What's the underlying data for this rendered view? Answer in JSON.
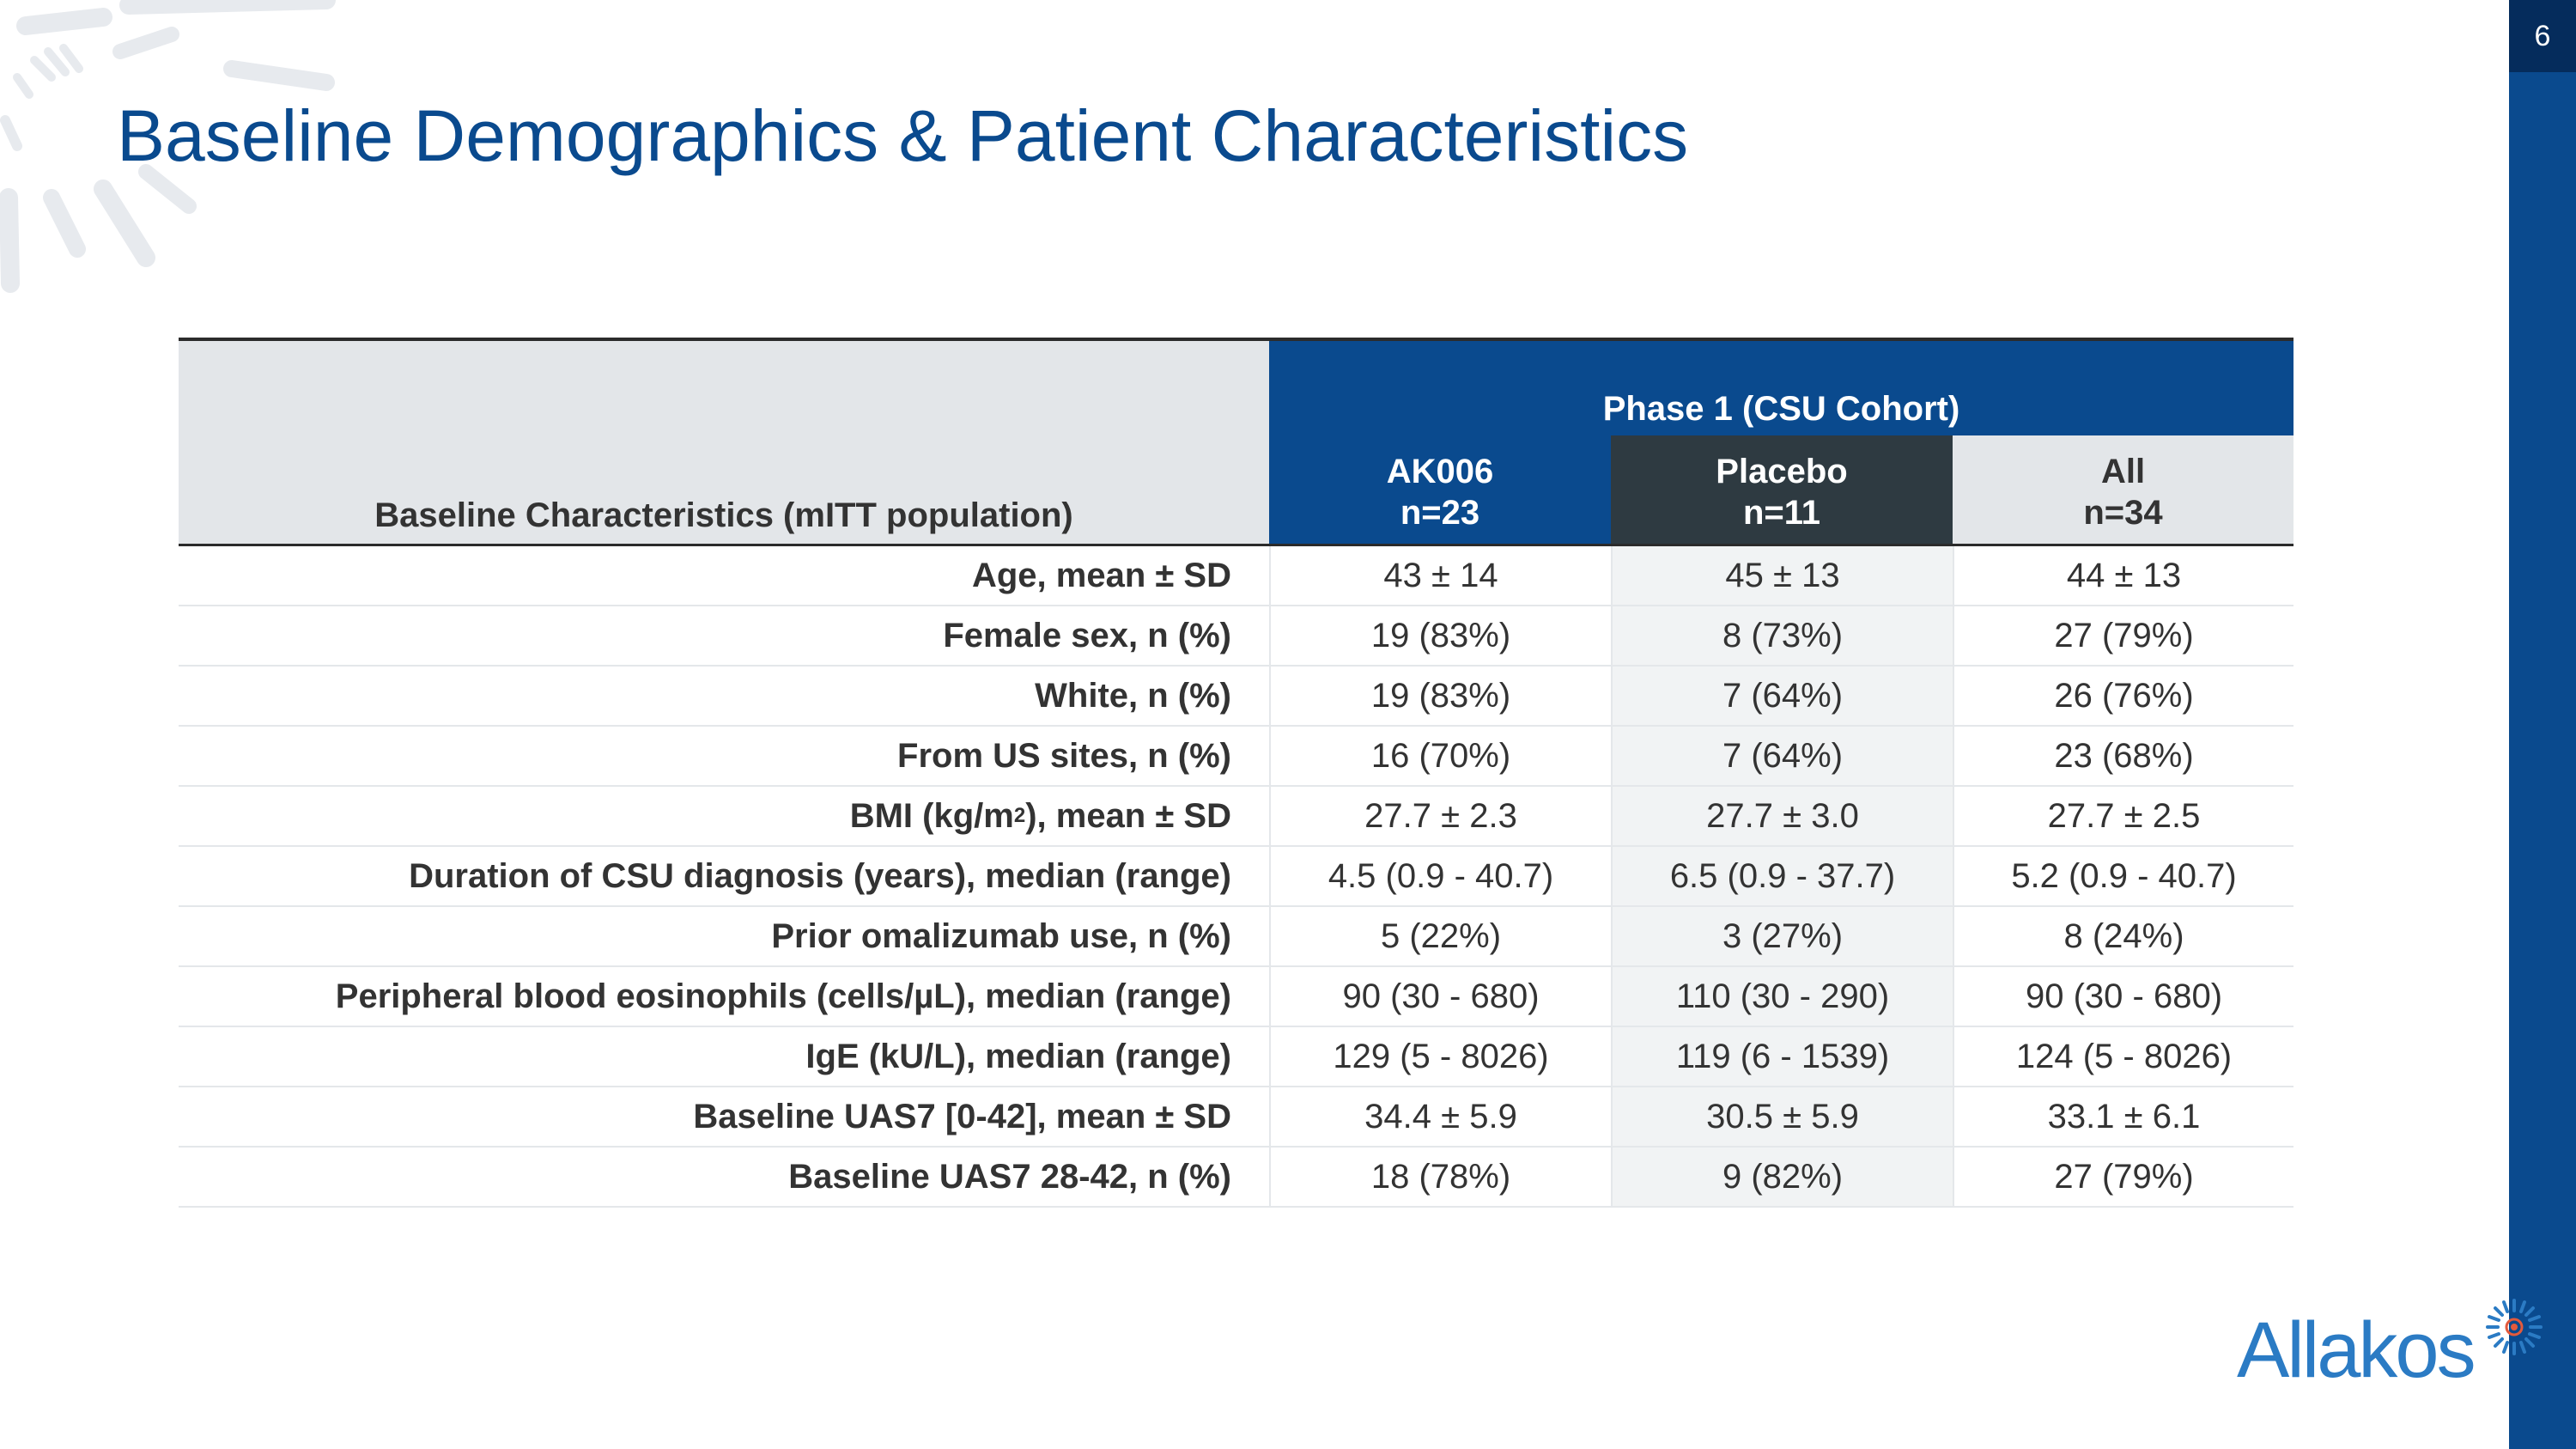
{
  "page": {
    "number": "6"
  },
  "title": "Baseline Demographics & Patient Characteristics",
  "table": {
    "row_header": "Baseline Characteristics (mITT population)",
    "group_header": "Phase 1 (CSU Cohort)",
    "columns": [
      {
        "name": "AK006",
        "n": "n=23"
      },
      {
        "name": "Placebo",
        "n": "n=11"
      },
      {
        "name": "All",
        "n": "n=34"
      }
    ],
    "rows": [
      {
        "label": "Age, mean ± SD",
        "values": [
          "43 ± 14",
          "45 ± 13",
          "44 ± 13"
        ]
      },
      {
        "label": "Female sex, n (%)",
        "values": [
          "19 (83%)",
          "8 (73%)",
          "27 (79%)"
        ]
      },
      {
        "label": "White, n (%)",
        "values": [
          "19 (83%)",
          "7 (64%)",
          "26 (76%)"
        ]
      },
      {
        "label": "From US sites, n (%)",
        "values": [
          "16 (70%)",
          "7 (64%)",
          "23 (68%)"
        ]
      },
      {
        "label_pre": "BMI (kg/m",
        "label_sup": "2",
        "label_post": "), mean ± SD",
        "values": [
          "27.7 ± 2.3",
          "27.7 ± 3.0",
          "27.7 ± 2.5"
        ]
      },
      {
        "label": "Duration of CSU diagnosis (years), median (range)",
        "values": [
          "4.5 (0.9 - 40.7)",
          "6.5 (0.9 - 37.7)",
          "5.2 (0.9 - 40.7)"
        ]
      },
      {
        "label": "Prior omalizumab use, n (%)",
        "values": [
          "5 (22%)",
          "3 (27%)",
          "8 (24%)"
        ]
      },
      {
        "label": "Peripheral blood eosinophils (cells/µL), median (range)",
        "values": [
          "90 (30 - 680)",
          "110 (30 - 290)",
          "90 (30 - 680)"
        ]
      },
      {
        "label": "IgE (kU/L), median (range)",
        "values": [
          "129 (5 - 8026)",
          "119 (6 - 1539)",
          "124 (5 - 8026)"
        ]
      },
      {
        "label": "Baseline UAS7 [0-42], mean ± SD",
        "values": [
          "34.4 ± 5.9",
          "30.5 ± 5.9",
          "33.1 ± 6.1"
        ]
      },
      {
        "label": "Baseline UAS7 28-42, n (%)",
        "values": [
          "18 (78%)",
          "9 (82%)",
          "27 (79%)"
        ]
      }
    ]
  },
  "logo": {
    "text": "Allakos"
  },
  "colors": {
    "brand_blue": "#0a4a8e",
    "dark_header": "#2e3a41",
    "logo_blue": "#2b7bc4"
  }
}
